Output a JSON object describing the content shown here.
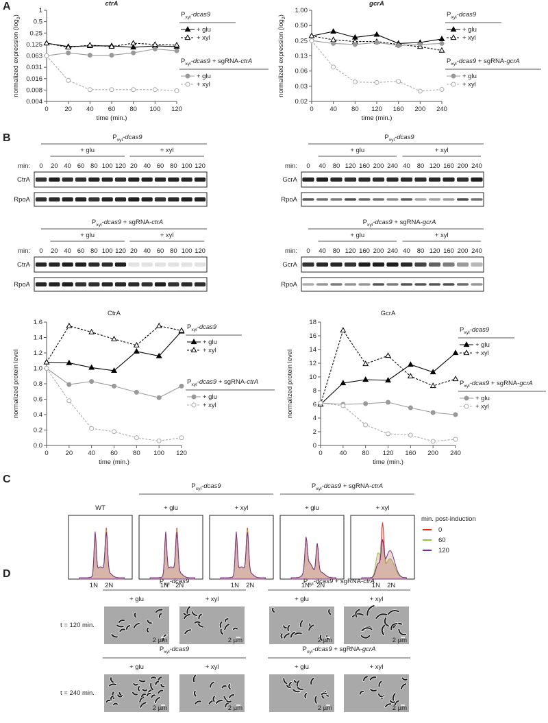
{
  "panel_labels": [
    "A",
    "B",
    "C",
    "D"
  ],
  "chart_data": [
    {
      "type": "line",
      "title": [
        {
          "text": "ctrA",
          "italic": true
        }
      ],
      "ylabel": [
        {
          "text": "normalized expression (log"
        },
        {
          "text": "2",
          "sub": true
        },
        {
          "text": ")"
        }
      ],
      "xlabel": "time (min.)",
      "log_scale_y": true,
      "x": [
        0,
        20,
        40,
        60,
        80,
        100,
        120
      ],
      "xlim": [
        0,
        120
      ],
      "xticks": [
        0,
        20,
        40,
        60,
        80,
        100,
        120
      ],
      "ylim": [
        0.00390625,
        1
      ],
      "yticks": [
        {
          "value": 0.00390625,
          "label": "0.004"
        },
        {
          "value": 0.0078125,
          "label": "0.008"
        },
        {
          "value": 0.015625,
          "label": "0.016"
        },
        {
          "value": 0.03125,
          "label": "0.031"
        },
        {
          "value": 0.0625,
          "label": "0.063"
        },
        0.125,
        0.25,
        0.5,
        1
      ],
      "series_groups": [
        {
          "title": [
            {
              "text": "P"
            },
            {
              "text": "xyl",
              "sub": true
            },
            {
              "text": "-dcas9",
              "italic": true
            }
          ],
          "series": [
            {
              "name": "+ glu",
              "color": "#000000",
              "dashed": false,
              "marker": "triangle",
              "filled": true,
              "values": [
                0.135,
                0.11,
                0.115,
                0.115,
                0.105,
                0.115,
                0.11
              ]
            },
            {
              "name": "+ xyl",
              "color": "#000000",
              "dashed": true,
              "marker": "triangle",
              "filled": false,
              "values": [
                0.135,
                0.105,
                0.12,
                0.11,
                0.135,
                0.125,
                0.12
              ]
            }
          ]
        },
        {
          "title": [
            {
              "text": "P"
            },
            {
              "text": "xyl",
              "sub": true
            },
            {
              "text": "-dcas9",
              "italic": true
            },
            {
              "text": " + sgRNA-"
            },
            {
              "text": "ctrA",
              "italic": true
            }
          ],
          "series": [
            {
              "name": "+ glu",
              "color": "#999999",
              "dashed": false,
              "marker": "circle",
              "filled": true,
              "values": [
                0.063,
                0.075,
                0.065,
                0.065,
                0.075,
                0.095,
                0.085
              ]
            },
            {
              "name": "+ xyl",
              "color": "#aaaaaa",
              "dashed": true,
              "marker": "circle",
              "filled": false,
              "values": [
                0.063,
                0.014,
                0.008,
                0.008,
                0.008,
                0.008,
                0.0075
              ]
            }
          ]
        }
      ]
    },
    {
      "type": "line",
      "title": [
        {
          "text": "gcrA",
          "italic": true
        }
      ],
      "ylabel": [
        {
          "text": "normalized expression (log"
        },
        {
          "text": "2",
          "sub": true
        },
        {
          "text": ")"
        }
      ],
      "xlabel": "time (min.)",
      "log_scale_y": true,
      "x": [
        0,
        40,
        80,
        120,
        160,
        200,
        240
      ],
      "xlim": [
        0,
        240
      ],
      "xticks": [
        0,
        40,
        80,
        120,
        160,
        200,
        240
      ],
      "ylim": [
        0.015625,
        1
      ],
      "yticks": [
        {
          "value": 0.015625,
          "label": "0.02"
        },
        {
          "value": 0.03125,
          "label": "0.03"
        },
        {
          "value": 0.0625,
          "label": "0.06"
        },
        {
          "value": 0.125,
          "label": "0.13"
        },
        0.25,
        {
          "value": 0.5,
          "label": "0.50"
        },
        {
          "value": 1,
          "label": "1.00"
        }
      ],
      "series_groups": [
        {
          "title": [
            {
              "text": "P"
            },
            {
              "text": "xyl",
              "sub": true
            },
            {
              "text": "-dcas9",
              "italic": true
            }
          ],
          "series": [
            {
              "name": "+ glu",
              "color": "#000000",
              "dashed": false,
              "marker": "triangle",
              "filled": true,
              "values": [
                0.31,
                0.38,
                0.29,
                0.33,
                0.22,
                0.23,
                0.27
              ]
            },
            {
              "name": "+ xyl",
              "color": "#000000",
              "dashed": true,
              "marker": "triangle",
              "filled": false,
              "values": [
                0.31,
                0.26,
                0.24,
                0.24,
                0.21,
                0.19,
                0.16
              ]
            }
          ]
        },
        {
          "title": [
            {
              "text": "P"
            },
            {
              "text": "xyl",
              "sub": true
            },
            {
              "text": "-dcas9",
              "italic": true
            },
            {
              "text": " + sgRNA-"
            },
            {
              "text": "gcrA",
              "italic": true
            }
          ],
          "series": [
            {
              "name": "+ glu",
              "color": "#999999",
              "dashed": false,
              "marker": "circle",
              "filled": true,
              "values": [
                0.25,
                0.22,
                0.21,
                0.23,
                0.2,
                0.21,
                0.22
              ]
            },
            {
              "name": "+ xyl",
              "color": "#aaaaaa",
              "dashed": true,
              "marker": "circle",
              "filled": false,
              "values": [
                0.25,
                0.075,
                0.038,
                0.037,
                0.039,
                0.025,
                0.027
              ]
            }
          ]
        }
      ]
    },
    {
      "type": "line",
      "title": [
        {
          "text": "CtrA"
        }
      ],
      "ylabel": [
        {
          "text": "normalized protein level"
        }
      ],
      "xlabel": "time (min.)",
      "log_scale_y": false,
      "x": [
        0,
        20,
        40,
        60,
        80,
        100,
        120
      ],
      "xlim": [
        0,
        120
      ],
      "xticks": [
        0,
        20,
        40,
        60,
        80,
        100,
        120
      ],
      "ylim": [
        0,
        1.6
      ],
      "yticks": [
        {
          "value": 0,
          "label": "0.0"
        },
        0.2,
        0.4,
        0.6,
        0.8,
        {
          "value": 1,
          "label": "1.0"
        },
        1.2,
        1.4,
        1.6
      ],
      "series_groups": [
        {
          "title": [
            {
              "text": "P"
            },
            {
              "text": "xyl",
              "sub": true
            },
            {
              "text": "-dcas9",
              "italic": true
            }
          ],
          "series": [
            {
              "name": "+ glu",
              "color": "#000000",
              "dashed": false,
              "marker": "triangle",
              "filled": true,
              "values": [
                1.08,
                1.07,
                1.01,
                0.97,
                1.22,
                1.16,
                1.48
              ]
            },
            {
              "name": "+ xyl",
              "color": "#000000",
              "dashed": true,
              "marker": "triangle",
              "filled": false,
              "values": [
                1.08,
                1.55,
                1.47,
                1.38,
                1.3,
                1.55,
                1.49
              ]
            }
          ]
        },
        {
          "title": [
            {
              "text": "P"
            },
            {
              "text": "xyl",
              "sub": true
            },
            {
              "text": "-dcas9",
              "italic": true
            },
            {
              "text": " + sgRNA-"
            },
            {
              "text": "ctrA",
              "italic": true
            }
          ],
          "series": [
            {
              "name": "+ glu",
              "color": "#999999",
              "dashed": false,
              "marker": "circle",
              "filled": true,
              "values": [
                1.0,
                0.79,
                0.83,
                0.77,
                0.69,
                0.62,
                0.77
              ]
            },
            {
              "name": "+ xyl",
              "color": "#aaaaaa",
              "dashed": true,
              "marker": "circle",
              "filled": false,
              "values": [
                1.0,
                0.58,
                0.22,
                0.18,
                0.1,
                0.06,
                0.1
              ]
            }
          ]
        }
      ]
    },
    {
      "type": "line",
      "title": [
        {
          "text": "GcrA"
        }
      ],
      "ylabel": [
        {
          "text": "normalized protein level"
        }
      ],
      "xlabel": "time (min.)",
      "log_scale_y": false,
      "x": [
        0,
        40,
        80,
        120,
        160,
        200,
        240
      ],
      "xlim": [
        0,
        240
      ],
      "xticks": [
        0,
        40,
        80,
        120,
        160,
        200,
        240
      ],
      "ylim": [
        0,
        18
      ],
      "yticks": [
        0,
        2,
        4,
        6,
        8,
        10,
        12,
        14,
        16,
        18
      ],
      "series_groups": [
        {
          "title": [
            {
              "text": "P"
            },
            {
              "text": "xyl",
              "sub": true
            },
            {
              "text": "-dcas9",
              "italic": true
            }
          ],
          "series": [
            {
              "name": "+ glu",
              "color": "#000000",
              "dashed": false,
              "marker": "triangle",
              "filled": true,
              "values": [
                6,
                9.1,
                9.6,
                9.5,
                11.8,
                10.7,
                13.5
              ]
            },
            {
              "name": "+ xyl",
              "color": "#000000",
              "dashed": true,
              "marker": "triangle",
              "filled": false,
              "values": [
                6,
                16.8,
                11.9,
                13.1,
                10.1,
                8.7,
                9.7
              ]
            }
          ]
        },
        {
          "title": [
            {
              "text": "P"
            },
            {
              "text": "xyl",
              "sub": true
            },
            {
              "text": "-dcas9",
              "italic": true
            },
            {
              "text": " + sgRNA-"
            },
            {
              "text": "gcrA",
              "italic": true
            }
          ],
          "series": [
            {
              "name": "+ glu",
              "color": "#999999",
              "dashed": false,
              "marker": "circle",
              "filled": true,
              "values": [
                6.2,
                6.0,
                6.1,
                6.3,
                5.5,
                4.8,
                4.5
              ]
            },
            {
              "name": "+ xyl",
              "color": "#aaaaaa",
              "dashed": true,
              "marker": "circle",
              "filled": false,
              "values": [
                6.2,
                5.8,
                3.0,
                1.7,
                1.5,
                0.6,
                0.9
              ]
            }
          ]
        }
      ]
    }
  ],
  "blots": [
    {
      "title": [
        {
          "text": "P"
        },
        {
          "text": "xyl",
          "sub": true
        },
        {
          "text": "-dcas9",
          "italic": true
        }
      ],
      "conditions": [
        "+ glu",
        "+ xyl"
      ],
      "min_label": "min:",
      "lanes": [
        0,
        20,
        40,
        60,
        80,
        100,
        120,
        20,
        40,
        60,
        80,
        100,
        120
      ],
      "rows": [
        "CtrA",
        "RpoA"
      ]
    },
    {
      "title": [
        {
          "text": "P"
        },
        {
          "text": "xyl",
          "sub": true
        },
        {
          "text": "-dcas9",
          "italic": true
        },
        {
          "text": " + sgRNA-"
        },
        {
          "text": "ctrA",
          "italic": true
        }
      ],
      "conditions": [
        "+ glu",
        "+ xyl"
      ],
      "min_label": "min:",
      "lanes": [
        0,
        20,
        40,
        60,
        80,
        100,
        120,
        20,
        40,
        60,
        80,
        100,
        120
      ],
      "rows": [
        "CtrA",
        "RpoA"
      ]
    },
    {
      "title": [
        {
          "text": "P"
        },
        {
          "text": "xyl",
          "sub": true
        },
        {
          "text": "-dcas9",
          "italic": true
        }
      ],
      "conditions": [
        "+ glu",
        "+ xyl"
      ],
      "min_label": "min:",
      "lanes": [
        0,
        40,
        80,
        120,
        160,
        200,
        240,
        40,
        80,
        120,
        160,
        200,
        240
      ],
      "rows": [
        "GcrA",
        "RpoA"
      ]
    },
    {
      "title": [
        {
          "text": "P"
        },
        {
          "text": "xyl",
          "sub": true
        },
        {
          "text": "-dcas9",
          "italic": true
        },
        {
          "text": " + sgRNA-"
        },
        {
          "text": "gcrA",
          "italic": true
        }
      ],
      "conditions": [
        "+ glu",
        "+ xyl"
      ],
      "min_label": "min:",
      "lanes": [
        0,
        40,
        80,
        120,
        160,
        200,
        240,
        40,
        80,
        120,
        160,
        200,
        240
      ],
      "rows": [
        "GcrA",
        "RpoA"
      ]
    }
  ],
  "flow": {
    "wt_label": "WT",
    "groups": [
      {
        "title": [
          {
            "text": "P"
          },
          {
            "text": "xyl",
            "sub": true
          },
          {
            "text": "-dcas9",
            "italic": true
          }
        ],
        "conditions": [
          "+ glu",
          "+ xyl"
        ]
      },
      {
        "title": [
          {
            "text": "P"
          },
          {
            "text": "xyl",
            "sub": true
          },
          {
            "text": "-dcas9",
            "italic": true
          },
          {
            "text": " + sgRNA-"
          },
          {
            "text": "ctrA",
            "italic": true
          }
        ],
        "conditions": [
          "+ glu",
          "+ xyl"
        ]
      }
    ],
    "axis_labels": [
      "1N",
      "2N"
    ],
    "legend": {
      "title": "min. post-induction",
      "entries": [
        {
          "label": 0,
          "color": "#e8291c"
        },
        {
          "label": 60,
          "color": "#8dc63f"
        },
        {
          "label": 120,
          "color": "#7b2d8e"
        }
      ]
    }
  },
  "microscopy": {
    "scale_bar": "2 µm",
    "rows": [
      {
        "time_label": "t = 120 min.",
        "groups": [
          {
            "title": [
              {
                "text": "P"
              },
              {
                "text": "xyl",
                "sub": true
              },
              {
                "text": "-dcas9",
                "italic": true
              }
            ],
            "conditions": [
              "+ glu",
              "+ xyl"
            ]
          },
          {
            "title": [
              {
                "text": "P"
              },
              {
                "text": "xyl",
                "sub": true
              },
              {
                "text": "-dcas9",
                "italic": true
              },
              {
                "text": " + sgRNA-"
              },
              {
                "text": "ctrA",
                "italic": true
              }
            ],
            "conditions": [
              "+ glu",
              "+ xyl"
            ]
          }
        ]
      },
      {
        "time_label": "t = 240 min.",
        "groups": [
          {
            "title": [
              {
                "text": "P"
              },
              {
                "text": "xyl",
                "sub": true
              },
              {
                "text": "-dcas9",
                "italic": true
              }
            ],
            "conditions": [
              "+ glu",
              "+ xyl"
            ]
          },
          {
            "title": [
              {
                "text": "P"
              },
              {
                "text": "xyl",
                "sub": true
              },
              {
                "text": "-dcas9",
                "italic": true
              },
              {
                "text": " + sgRNA-"
              },
              {
                "text": "gcrA",
                "italic": true
              }
            ],
            "conditions": [
              "+ glu",
              "+ xyl"
            ]
          }
        ]
      }
    ]
  }
}
